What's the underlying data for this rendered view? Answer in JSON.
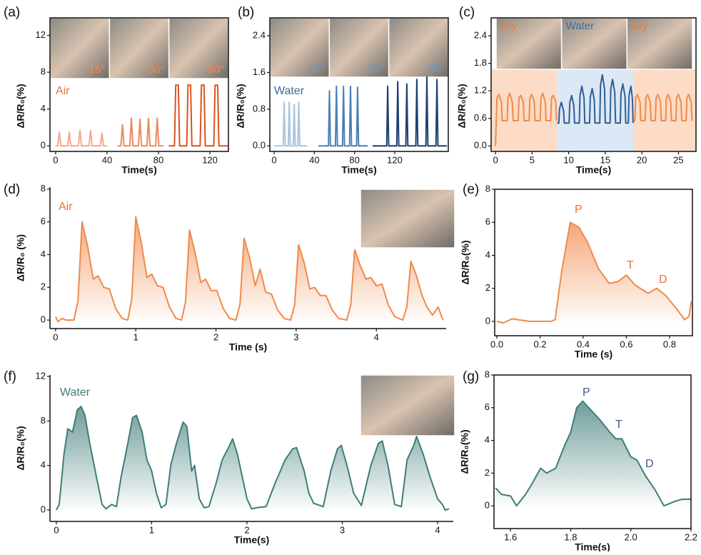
{
  "chart_data": [
    {
      "panel": "(a)",
      "type": "line",
      "xlabel": "Time(s)",
      "ylabel": "ΔR/R₀(%)",
      "xlim": [
        -4.4,
        134.4
      ],
      "ylim": [
        -0.6,
        13.9
      ],
      "xticks": [
        0,
        40,
        80,
        120
      ],
      "yticks": [
        0,
        4,
        8,
        12
      ],
      "box": true,
      "photo_labels": [
        "15°",
        "30°",
        "60°"
      ],
      "photo_label_colors": [
        "#f08a4b",
        "#f08a4b",
        "#f08a4b"
      ],
      "annotations": [
        "Air"
      ],
      "annotation_color": "#e8703a",
      "series": [
        {
          "color": "#f4a98a",
          "x": [
            0,
            1.6,
            2.8,
            4.0,
            9.4,
            10.6,
            11.8,
            17.7,
            18.9,
            20.1,
            26,
            27.2,
            28.4,
            34.8,
            36,
            37.2,
            40
          ],
          "values": [
            0,
            0,
            1.5,
            0,
            0,
            1.5,
            0,
            0,
            1.7,
            0,
            0,
            1.7,
            0,
            0,
            1.4,
            0,
            0
          ]
        },
        {
          "color": "#ea8a5c",
          "x": [
            48,
            50.8,
            52,
            53.2,
            57.7,
            58.9,
            60.1,
            64.4,
            65.6,
            66.8,
            71,
            72.2,
            73.4,
            77.8,
            79,
            80.2,
            84
          ],
          "values": [
            0,
            0,
            2.3,
            0,
            0,
            3.0,
            0,
            0,
            2.9,
            0,
            0,
            3.0,
            0,
            0,
            3.0,
            0,
            0
          ]
        },
        {
          "color": "#d9541e",
          "x": [
            88,
            92.4,
            93.4,
            95.4,
            96.4,
            102,
            103,
            105,
            106,
            112.4,
            113.4,
            115.4,
            116.4,
            123,
            124,
            126,
            127,
            134
          ],
          "values": [
            0,
            0,
            6.6,
            6.6,
            0,
            0,
            6.6,
            6.6,
            0,
            0,
            6.6,
            6.6,
            0,
            0,
            6.6,
            6.6,
            0,
            0
          ]
        }
      ]
    },
    {
      "panel": "(b)",
      "type": "line",
      "xlabel": "Time(s)",
      "ylabel": "ΔR/R₀(%)",
      "xlim": [
        -4.3,
        173.3
      ],
      "ylim": [
        -0.12,
        2.79
      ],
      "xticks": [
        0,
        40,
        80,
        120
      ],
      "yticks": [
        {
          "value": 0,
          "label": "0.0"
        },
        0.8,
        1.6,
        2.4
      ],
      "box": true,
      "photo_labels": [
        "15°",
        "30°",
        "60°"
      ],
      "photo_label_colors": [
        "#6f98c4",
        "#6f98c4",
        "#6f98c4"
      ],
      "annotations": [
        "Water"
      ],
      "annotation_color": "#3d6b9c",
      "series": [
        {
          "color": "#a9c4e0",
          "x": [
            0,
            9,
            10,
            11,
            14,
            15,
            16,
            19,
            20,
            21,
            23.5,
            24.5,
            25.5,
            33
          ],
          "values": [
            0,
            0,
            0.95,
            0,
            0,
            0.95,
            0,
            0,
            0.9,
            0,
            0,
            0.95,
            0,
            0
          ]
        },
        {
          "color": "#4a7fb5",
          "x": [
            44,
            54,
            55,
            56,
            61,
            62,
            63,
            68,
            69,
            70,
            75,
            76,
            77,
            82,
            83,
            84,
            93
          ],
          "values": [
            0,
            0,
            1.2,
            0,
            0,
            1.3,
            0,
            0,
            1.3,
            0,
            0,
            1.3,
            0,
            0,
            1.28,
            0,
            0
          ]
        },
        {
          "color": "#1f3f73",
          "x": [
            98,
            112,
            113,
            114,
            122,
            123,
            124,
            131,
            132,
            133,
            141,
            142,
            143,
            151,
            152,
            153,
            161,
            162,
            163,
            172
          ],
          "values": [
            0,
            0,
            1.3,
            0,
            0,
            1.4,
            0,
            0,
            1.35,
            0,
            0,
            1.45,
            0,
            0,
            1.5,
            0,
            0,
            1.45,
            0,
            0
          ]
        }
      ]
    },
    {
      "panel": "(c)",
      "type": "line",
      "xlabel": "Time(s)",
      "ylabel": "ΔR/R₀(%)",
      "xlim": [
        -0.6,
        27.4
      ],
      "ylim": [
        -0.12,
        2.79
      ],
      "xticks": [
        0,
        5,
        10,
        15,
        20,
        25
      ],
      "yticks": [
        {
          "value": 0,
          "label": "0.0"
        },
        0.6,
        1.2,
        1.8,
        2.4
      ],
      "box": true,
      "photo_labels": [
        "Dry",
        "Water",
        "Dry"
      ],
      "photo_label_colors": [
        "#f07a3a",
        "#3d6b9c",
        "#f07a3a"
      ],
      "regions": [
        {
          "x0": -0.6,
          "x1": 8.4,
          "color": "#fcdcc6"
        },
        {
          "x0": 8.4,
          "x1": 18.85,
          "color": "#dbe8f5"
        },
        {
          "x0": 18.85,
          "x1": 27.4,
          "color": "#fcdcc6"
        }
      ],
      "series": [
        {
          "color": "#f08a4b",
          "x": [
            0,
            0.1,
            0.2,
            0.45,
            0.8,
            0.9,
            1.6,
            1.7,
            1.95,
            2.3,
            2.4,
            3.1,
            3.2,
            3.45,
            3.8,
            3.9,
            4.6,
            4.7,
            4.95,
            5.3,
            5.4,
            6.1,
            6.2,
            6.45,
            6.8,
            6.9,
            7.55,
            7.65,
            7.9,
            8.25,
            8.35
          ],
          "values": [
            0,
            0.55,
            1.05,
            1.12,
            0.95,
            0.55,
            0.55,
            1.05,
            1.15,
            0.95,
            0.55,
            0.55,
            1.05,
            1.1,
            0.95,
            0.55,
            0.55,
            1.05,
            1.12,
            0.95,
            0.55,
            0.55,
            1.05,
            1.15,
            0.95,
            0.55,
            0.55,
            1.05,
            1.1,
            0.95,
            0.55
          ]
        },
        {
          "color": "#2f5f95",
          "x": [
            8.4,
            8.65,
            8.75,
            9.0,
            9.3,
            9.4,
            10.05,
            10.15,
            10.4,
            10.7,
            10.8,
            11.45,
            11.55,
            11.8,
            12.1,
            12.2,
            12.85,
            12.95,
            13.2,
            13.5,
            13.6,
            14.25,
            14.35,
            14.6,
            14.9,
            15.0,
            15.65,
            15.75,
            16.0,
            16.3,
            16.4,
            17.05,
            17.15,
            17.4,
            17.7,
            17.8,
            18.15,
            18.25,
            18.5,
            18.7,
            18.8
          ],
          "values": [
            0.5,
            0.5,
            0.81,
            0.95,
            0.76,
            0.5,
            0.5,
            0.94,
            1.1,
            0.88,
            0.5,
            0.5,
            1.1,
            1.3,
            1.04,
            0.5,
            0.5,
            1.06,
            1.25,
            1.0,
            0.5,
            0.5,
            1.32,
            1.55,
            1.24,
            0.5,
            0.5,
            1.23,
            1.45,
            1.16,
            0.5,
            0.5,
            1.15,
            1.35,
            1.08,
            0.5,
            0.5,
            1.1,
            1.3,
            1.04,
            0.5
          ]
        },
        {
          "color": "#f08a4b",
          "x": [
            18.9,
            19.05,
            19.15,
            19.4,
            19.75,
            19.85,
            20.45,
            20.55,
            20.8,
            21.15,
            21.25,
            21.85,
            21.95,
            22.2,
            22.55,
            22.65,
            23.25,
            23.35,
            23.6,
            23.95,
            24.05,
            24.65,
            24.75,
            25.0,
            25.35,
            25.45,
            26.05,
            26.15,
            26.4,
            26.75,
            26.85
          ],
          "values": [
            0.55,
            0.55,
            1.05,
            1.12,
            0.95,
            0.55,
            0.55,
            1.05,
            1.12,
            0.95,
            0.55,
            0.55,
            1.05,
            1.12,
            0.95,
            0.55,
            0.55,
            1.05,
            1.12,
            0.95,
            0.55,
            0.55,
            1.05,
            1.12,
            0.95,
            0.55,
            0.55,
            1.05,
            1.12,
            0.95,
            0.55
          ]
        }
      ]
    },
    {
      "panel": "(d)",
      "type": "area",
      "xlabel": "Time (s)",
      "ylabel": "ΔR/R₀ (%)",
      "xlim": [
        -0.07,
        4.87
      ],
      "ylim": [
        -0.52,
        8.12
      ],
      "xticks": [
        0,
        1,
        2,
        3,
        4
      ],
      "yticks": [
        0,
        2,
        4,
        6,
        8
      ],
      "box": false,
      "annotations": [
        "Air"
      ],
      "annotation_color": "#e8703a",
      "series": [
        {
          "color": "#f08a4b",
          "x": [
            0,
            0.03,
            0.08,
            0.13,
            0.18,
            0.23,
            0.28,
            0.33,
            0.4,
            0.47,
            0.53,
            0.6,
            0.67,
            0.75,
            0.83,
            0.9,
            0.95,
            1.0,
            1.07,
            1.14,
            1.2,
            1.27,
            1.34,
            1.42,
            1.5,
            1.57,
            1.62,
            1.67,
            1.74,
            1.81,
            1.87,
            1.94,
            2.01,
            2.09,
            2.17,
            2.25,
            2.3,
            2.35,
            2.42,
            2.49,
            2.55,
            2.62,
            2.69,
            2.77,
            2.85,
            2.93,
            2.98,
            3.03,
            3.1,
            3.17,
            3.23,
            3.3,
            3.37,
            3.45,
            3.53,
            3.63,
            3.68,
            3.73,
            3.8,
            3.87,
            3.93,
            4.0,
            4.07,
            4.15,
            4.23,
            4.33,
            4.38,
            4.43,
            4.5,
            4.57,
            4.63,
            4.7,
            4.77,
            4.83
          ],
          "values": [
            0.2,
            -0.1,
            0.1,
            0,
            0,
            0,
            1.2,
            6.0,
            4.5,
            2.5,
            2.7,
            2.0,
            1.9,
            0.7,
            0.1,
            0,
            1.3,
            6.3,
            4.7,
            2.6,
            2.8,
            2.1,
            2.0,
            0.8,
            0.1,
            0,
            1.1,
            5.5,
            4.1,
            2.3,
            2.5,
            1.8,
            1.8,
            0.7,
            0.1,
            0,
            1.0,
            5.0,
            3.8,
            2.1,
            3.1,
            1.7,
            1.6,
            0.6,
            0.1,
            0,
            0.9,
            4.6,
            3.5,
            1.9,
            2.0,
            1.5,
            1.5,
            0.6,
            0.1,
            0,
            0.9,
            4.3,
            3.3,
            2.5,
            2.6,
            2.1,
            2.2,
            0.9,
            0.2,
            0,
            0.8,
            3.6,
            2.7,
            1.5,
            0.8,
            0.3,
            0.8,
            0.0
          ]
        }
      ]
    },
    {
      "panel": "(e)",
      "type": "area",
      "xlabel": "Time (s)",
      "ylabel": "ΔR/R₀(%)",
      "xlim": [
        -0.01,
        0.906
      ],
      "ylim": [
        -0.87,
        8
      ],
      "xticks": [
        {
          "value": 0,
          "label": "0.0"
        },
        0.2,
        0.4,
        0.6,
        0.8
      ],
      "yticks": [
        0,
        2,
        4,
        6,
        8
      ],
      "box": true,
      "annotations": [
        "P",
        "T",
        "D"
      ],
      "annotation_color": "#e8703a",
      "series": [
        {
          "color": "#f08a4b",
          "x": [
            0,
            0.03,
            0.07,
            0.1,
            0.15,
            0.2,
            0.25,
            0.27,
            0.3,
            0.34,
            0.38,
            0.42,
            0.47,
            0.52,
            0.56,
            0.6,
            0.64,
            0.7,
            0.74,
            0.78,
            0.83,
            0.87,
            0.89,
            0.9
          ],
          "values": [
            0,
            -0.1,
            0.15,
            0.1,
            0,
            0,
            0,
            0.1,
            3.0,
            6.0,
            5.7,
            4.8,
            3.2,
            2.3,
            2.4,
            2.8,
            2.2,
            1.7,
            2.0,
            1.6,
            0.8,
            0.1,
            0.3,
            1.2
          ]
        }
      ]
    },
    {
      "panel": "(f)",
      "type": "area",
      "xlabel": "Time(s)",
      "ylabel": "ΔR/R₀(%)",
      "xlim": [
        -0.067,
        4.165
      ],
      "ylim": [
        -1.03,
        12.13
      ],
      "xticks": [
        0,
        1,
        2,
        3,
        4
      ],
      "yticks": [
        0,
        4,
        8,
        12
      ],
      "box": false,
      "annotations": [
        "Water"
      ],
      "annotation_color": "#3f7d78",
      "series": [
        {
          "color": "#3f7d78",
          "x": [
            0,
            0.03,
            0.08,
            0.12,
            0.17,
            0.22,
            0.26,
            0.3,
            0.35,
            0.42,
            0.48,
            0.52,
            0.58,
            0.63,
            0.68,
            0.75,
            0.8,
            0.84,
            0.9,
            0.95,
            1.0,
            1.05,
            1.1,
            1.15,
            1.2,
            1.26,
            1.33,
            1.37,
            1.42,
            1.45,
            1.5,
            1.55,
            1.6,
            1.68,
            1.74,
            1.8,
            1.85,
            1.9,
            1.95,
            2.0,
            2.05,
            2.1,
            2.2,
            2.3,
            2.4,
            2.48,
            2.52,
            2.6,
            2.65,
            2.7,
            2.8,
            2.88,
            2.95,
            2.99,
            3.05,
            3.12,
            3.2,
            3.3,
            3.38,
            3.42,
            3.48,
            3.55,
            3.62,
            3.68,
            3.75,
            3.78,
            3.85,
            3.92,
            4.0,
            4.05,
            4.08,
            4.12
          ],
          "values": [
            0,
            0.5,
            5,
            7.3,
            7.0,
            9.0,
            9.3,
            8.5,
            6.0,
            3.0,
            0.5,
            0.1,
            0.5,
            0.3,
            3.0,
            6.0,
            8.3,
            8.5,
            7.0,
            4.5,
            3.5,
            1.5,
            0.2,
            0.5,
            4.0,
            6.0,
            7.9,
            7.5,
            3.5,
            4.0,
            1.0,
            0.2,
            0.3,
            2.5,
            4.5,
            5.5,
            6.4,
            5.0,
            3.0,
            1.0,
            0.1,
            0.2,
            0.3,
            2.5,
            4.5,
            5.5,
            5.6,
            3.5,
            1.5,
            0.6,
            0.3,
            3.5,
            5.5,
            5.8,
            4.0,
            1.5,
            0.4,
            4.0,
            6.0,
            6.2,
            4.0,
            0.5,
            0.3,
            4.5,
            5.8,
            6.6,
            5.0,
            3.0,
            1.0,
            0.5,
            0,
            0.1
          ]
        }
      ]
    },
    {
      "panel": "(g)",
      "type": "area",
      "xlabel": "Time(s)",
      "ylabel": "ΔR/R₀(%)",
      "xlim": [
        1.545,
        2.2
      ],
      "ylim": [
        -1.39,
        8
      ],
      "xticks": [
        1.6,
        1.8,
        {
          "value": 2,
          "label": "2.0"
        },
        2.2
      ],
      "yticks": [
        0,
        2,
        4,
        6,
        8
      ],
      "box": true,
      "annotations": [
        "P",
        "T",
        "D"
      ],
      "annotation_color": "#3d5a8a",
      "series": [
        {
          "color": "#3f7d78",
          "x": [
            1.55,
            1.57,
            1.6,
            1.62,
            1.65,
            1.67,
            1.7,
            1.72,
            1.75,
            1.78,
            1.8,
            1.82,
            1.84,
            1.86,
            1.9,
            1.93,
            1.95,
            1.97,
            2.0,
            2.02,
            2.05,
            2.08,
            2.11,
            2.15,
            2.17,
            2.2
          ],
          "values": [
            1.1,
            0.7,
            0.6,
            0,
            0.7,
            1.3,
            2.3,
            2.0,
            2.3,
            3.7,
            4.5,
            6.0,
            6.4,
            6.0,
            5.2,
            4.5,
            4.1,
            4.1,
            3.0,
            2.8,
            1.8,
            1.0,
            0,
            0.3,
            0.4,
            0.4
          ]
        }
      ]
    }
  ]
}
